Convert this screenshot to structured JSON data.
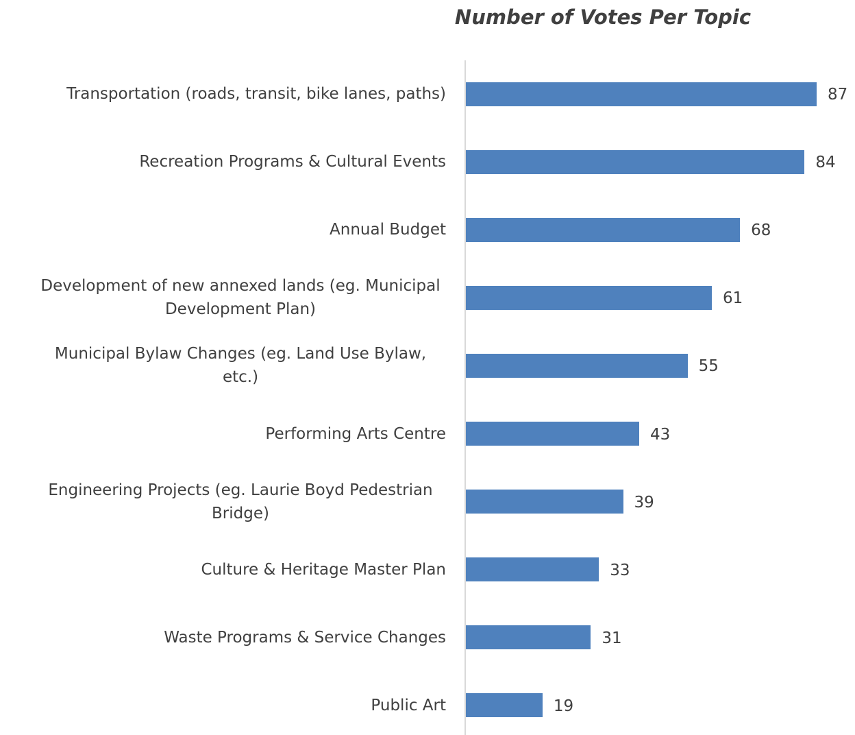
{
  "chart_data": {
    "type": "barh",
    "title": "Number of Votes Per Topic",
    "categories": [
      "Transportation (roads, transit, bike lanes, paths)",
      "Recreation Programs & Cultural Events",
      "Annual Budget",
      "Development of new annexed lands (eg. Municipal Development Plan)",
      "Municipal Bylaw Changes (eg. Land Use Bylaw, etc.)",
      "Performing Arts Centre",
      "Engineering Projects (eg. Laurie Boyd Pedestrian Bridge)",
      "Culture & Heritage Master Plan",
      "Waste Programs & Service Changes",
      "Public Art"
    ],
    "values": [
      87,
      84,
      68,
      61,
      55,
      43,
      39,
      33,
      31,
      19
    ],
    "color": "#4f81bd"
  }
}
